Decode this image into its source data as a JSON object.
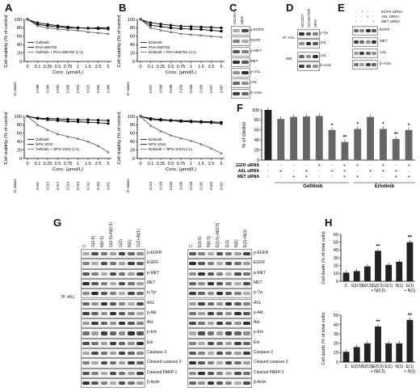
{
  "panels": {
    "A": "A",
    "B": "B",
    "C": "C",
    "D": "D",
    "E": "E",
    "F": "F",
    "G": "G",
    "H": "H"
  },
  "axis": {
    "viability_label": "Cell viability (% of control)",
    "conc_label": "Conc. (μmol/L)",
    "conc_ticks": [
      "0",
      "0.1",
      "0.25",
      "0.5",
      "0.75",
      "1",
      "1.5",
      "2.5",
      "5"
    ],
    "ci_label": "CI values",
    "ylim": [
      0,
      100
    ],
    "yticks": [
      "0",
      "20",
      "40",
      "60",
      "80",
      "100"
    ]
  },
  "charts": [
    {
      "id": "A-top",
      "legend": [
        "Gefitinib",
        "PHA-665752",
        "Gefitinib + PHA-665752 (1:1)"
      ],
      "ci": [
        "0.999",
        "0.994",
        "0.994",
        "0.999",
        "0.924",
        "0.925",
        "0.994",
        "0.996"
      ],
      "series": [
        {
          "name": "Gefitinib",
          "values": [
            100,
            88,
            85,
            82,
            80,
            80,
            79,
            78,
            77
          ]
        },
        {
          "name": "PHA-665752",
          "values": [
            100,
            92,
            88,
            85,
            82,
            80,
            79,
            80,
            80
          ]
        },
        {
          "name": "Gefitinib + PHA-665752 (1:1)",
          "values": [
            100,
            85,
            80,
            77,
            75,
            74,
            70,
            68,
            66
          ]
        }
      ]
    },
    {
      "id": "B-top",
      "legend": [
        "Erlotinib",
        "PHA-665752",
        "Erlotinib + PHA-665752 (1:1)"
      ],
      "ci": [
        "0.927",
        "0.998",
        "0.999",
        "0.959",
        "0.959",
        "0.959",
        "0.927",
        "0.997"
      ],
      "series": [
        {
          "name": "Erlotinib",
          "values": [
            100,
            86,
            83,
            80,
            78,
            77,
            76,
            74,
            72
          ]
        },
        {
          "name": "PHA-665752",
          "values": [
            100,
            92,
            89,
            86,
            84,
            83,
            82,
            81,
            80
          ]
        },
        {
          "name": "Erlotinib + PHA-665752 (1:1)",
          "values": [
            100,
            80,
            74,
            70,
            66,
            64,
            62,
            60,
            58
          ]
        }
      ]
    },
    {
      "id": "A-bottom",
      "legend": [
        "Gefitinib",
        "NPS-1034",
        "Gefitinib + NPS-1034 (1:1)"
      ],
      "ci": [
        "0.001",
        "0.013",
        "0.017",
        "0.013",
        "0.014",
        "0.011",
        "0.002",
        "0.001"
      ],
      "series": [
        {
          "name": "Gefitinib",
          "values": [
            100,
            96,
            95,
            94,
            93,
            92,
            92,
            91,
            90
          ]
        },
        {
          "name": "NPS-1034",
          "values": [
            100,
            95,
            92,
            90,
            88,
            87,
            86,
            85,
            83
          ]
        },
        {
          "name": "Gefitinib + NPS-1034 (1:1)",
          "values": [
            100,
            80,
            68,
            58,
            52,
            47,
            40,
            30,
            15
          ]
        }
      ]
    },
    {
      "id": "B-bottom",
      "legend": [
        "Erlotinib",
        "NPS-1034",
        "Erlotinib + NPS-1034 (1:1)"
      ],
      "ci": [
        "0.010",
        "0.018",
        "0.034",
        "0.008",
        "0.029",
        "0.032",
        "0.002",
        "0.001"
      ],
      "series": [
        {
          "name": "Erlotinib",
          "values": [
            100,
            93,
            91,
            90,
            88,
            87,
            86,
            85,
            83
          ]
        },
        {
          "name": "NPS-1034",
          "values": [
            100,
            95,
            93,
            91,
            90,
            89,
            88,
            87,
            86
          ]
        },
        {
          "name": "Erlotinib + NPS-1034 (1:1)",
          "values": [
            100,
            78,
            65,
            55,
            48,
            42,
            34,
            24,
            12
          ]
        }
      ]
    }
  ],
  "blotC": {
    "lanes": [
      "HCC827",
      "H820"
    ],
    "rows": [
      "p-EGFR",
      "EGFR",
      "p-MET",
      "MET",
      "p-AXL",
      "AXL",
      "β-Actin"
    ]
  },
  "blotD": {
    "lanes": [
      "HCC827",
      "HCC827/ER",
      "H820"
    ],
    "rows": [
      "p-Tyr",
      "AXL",
      "AXL",
      "β-Actin"
    ],
    "ip": "IP: AXL",
    "wb": "WB"
  },
  "blotE": {
    "conditions": [
      {
        "label": "EGFR siRNA",
        "signs": [
          "-",
          "+",
          "-",
          "-"
        ]
      },
      {
        "label": "AXL siRNA",
        "signs": [
          "-",
          "-",
          "+",
          "-"
        ]
      },
      {
        "label": "MET siRNA",
        "signs": [
          "-",
          "-",
          "-",
          "+"
        ]
      }
    ],
    "rows": [
      "EGFR",
      "MET",
      "AXL",
      "β-Actin"
    ]
  },
  "chartF": {
    "ylabel": "% of control",
    "yticks": [
      "0",
      "20",
      "40",
      "60",
      "80",
      "100"
    ],
    "values": [
      100,
      82,
      86,
      87,
      88,
      60,
      36,
      62,
      86,
      62,
      42,
      60
    ],
    "stars": [
      "",
      "",
      "",
      "",
      "",
      "*",
      "**",
      "*",
      "",
      "*",
      "**",
      "*"
    ],
    "conditions": [
      {
        "label": "EGFR siRNA",
        "signs": [
          "-",
          "-",
          "-",
          "-",
          "+",
          "-",
          "+",
          "+",
          "-",
          "+",
          "-",
          "+"
        ]
      },
      {
        "label": "AXL siRNA",
        "signs": [
          "-",
          "+",
          "-",
          "+",
          "-",
          "+",
          "+",
          "-",
          "+",
          "+",
          "+",
          "-"
        ]
      },
      {
        "label": "MET siRNA",
        "signs": [
          "-",
          "-",
          "+",
          "+",
          "-",
          "-",
          "+",
          "+",
          "-",
          "-",
          "+",
          "+"
        ]
      }
    ],
    "groups": [
      "Gefitinib",
      "Erlotinib"
    ]
  },
  "blotG": {
    "left_lanes": [
      "C",
      "G(0.5)",
      "N(0.5)",
      "G(0.5)+N(0.5)",
      "G(1)",
      "N(1)",
      "G(1)+N(1)"
    ],
    "right_lanes": [
      "C",
      "E(0.5)",
      "N(0.5)",
      "E(0.5)+N(0.5)",
      "E(1)",
      "N(1)",
      "E(1)+N(1)"
    ],
    "rows": [
      "p-EGFR",
      "EGFR",
      "p-MET",
      "MET",
      "p-Tyr",
      "AXL",
      "p-Akt",
      "Akt",
      "p-Erk",
      "Erk",
      "Caspase 3",
      "Cleaved caspase 3",
      "Cleaved PARP-1",
      "β-Actin"
    ],
    "ip": "IP: AXL"
  },
  "chartH": [
    {
      "id": "H-top",
      "ylabel": "Cell death (% of total cells)",
      "yticks": [
        "0",
        "10",
        "20",
        "30",
        "40",
        "50",
        "60"
      ],
      "ylim": [
        0,
        60
      ],
      "categories": [
        "C",
        "G(0.5)",
        "N(0.5)",
        "G(0.5)+N(0.5)",
        "G(1)",
        "N(1)",
        "G(1)+N(1)"
      ],
      "cat_top": [
        "C",
        "G(0.5)",
        "N(0.5)",
        "G(0.5)",
        "G(1)",
        "N(1)",
        "G(1)"
      ],
      "cat_bottom": [
        "",
        "",
        "",
        "+ N(0.5)",
        "",
        "",
        "+ N(1)"
      ],
      "values": [
        11,
        13,
        19,
        39,
        21,
        25,
        50
      ],
      "stars": [
        "",
        "",
        "",
        "**",
        "",
        "",
        "**"
      ]
    },
    {
      "id": "H-bottom",
      "ylabel": "Cell death (% of total cells)",
      "yticks": [
        "0",
        "10",
        "20",
        "30",
        "40",
        "50"
      ],
      "ylim": [
        0,
        50
      ],
      "categories": [
        "C",
        "E(0.5)",
        "N(0.5)",
        "E(0.5)+N(0.5)",
        "E(1)",
        "N(1)",
        "E(1)+N(1)"
      ],
      "cat_top": [
        "C",
        "E(0.5)",
        "N(0.5)",
        "E(0.5)",
        "E(1)",
        "N(1)",
        "E(1)"
      ],
      "cat_bottom": [
        "",
        "",
        "",
        "+ N(0.5)",
        "",
        "",
        "+ N(1)"
      ],
      "values": [
        11,
        16,
        20,
        38,
        20,
        20,
        45
      ],
      "stars": [
        "",
        "",
        "",
        "**",
        "",
        "",
        "**"
      ]
    }
  ]
}
